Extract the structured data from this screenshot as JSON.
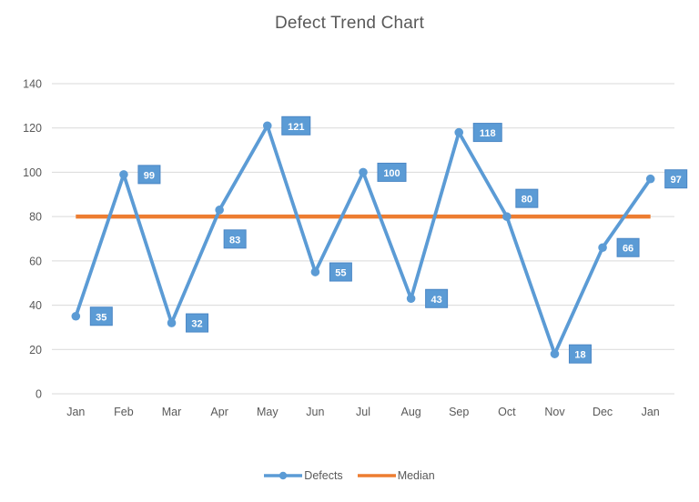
{
  "chart_data": {
    "type": "line",
    "title": "Defect Trend Chart",
    "categories": [
      "Jan",
      "Feb",
      "Mar",
      "Apr",
      "May",
      "Jun",
      "Jul",
      "Aug",
      "Sep",
      "Oct",
      "Nov",
      "Dec",
      "Jan"
    ],
    "series": [
      {
        "name": "Defects",
        "values": [
          35,
          99,
          32,
          83,
          121,
          55,
          100,
          43,
          118,
          80,
          18,
          66,
          97
        ],
        "color": "#5B9BD5",
        "marker": "circle",
        "show_data_labels": true
      },
      {
        "name": "Median",
        "constant_value": 80,
        "color": "#ED7D31"
      }
    ],
    "ylim": [
      0,
      140
    ],
    "yticks": [
      0,
      20,
      40,
      60,
      80,
      100,
      120,
      140
    ],
    "gridlines": "horizontal",
    "legend_position": "bottom",
    "label_placements": [
      "right",
      "right",
      "right",
      "below-right",
      "right",
      "right",
      "right",
      "right",
      "right",
      "above-right",
      "right",
      "right",
      "right"
    ],
    "colors": {
      "axis_text": "#595959",
      "title_text": "#595959",
      "gridline": "#D9D9D9",
      "data_label_bg": "#5B9BD5",
      "data_label_border": "#4A86C5",
      "data_label_text": "#FFFFFF"
    }
  }
}
